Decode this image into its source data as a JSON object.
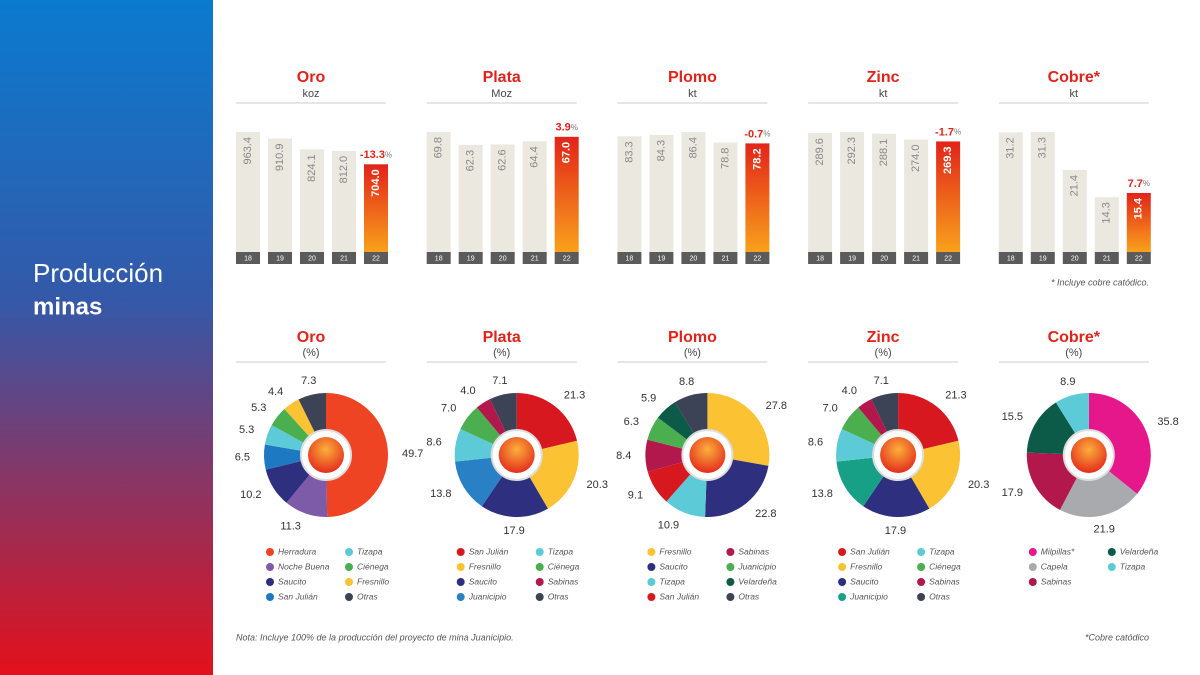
{
  "header": {
    "title": "Producción",
    "subtitle": "minas"
  },
  "notes": {
    "bars": "* Incluye cobre catódico.",
    "left": "Nota: Incluye 100% de la producción del proyecto de mina Juanicipio.",
    "right": "*Cobre catódico"
  },
  "chart_data": [
    {
      "type": "bar",
      "title": "Oro",
      "subtitle": "koz",
      "categories": [
        "18",
        "19",
        "20",
        "21",
        "22"
      ],
      "values": [
        963.4,
        910.9,
        824.1,
        812.0,
        704.0
      ],
      "value_labels": [
        "963.4",
        "910.9",
        "824.1",
        "812.0",
        "704.0"
      ],
      "change_label": "-13.3%",
      "color": "#ebe8df",
      "highlight_colors": [
        "#e2231a",
        "#f9a11b"
      ]
    },
    {
      "type": "bar",
      "title": "Plata",
      "subtitle": "Moz",
      "categories": [
        "18",
        "19",
        "20",
        "21",
        "22"
      ],
      "values": [
        69.8,
        62.3,
        62.6,
        64.4,
        67.0
      ],
      "value_labels": [
        "69.8",
        "62.3",
        "62.6",
        "64.4",
        "67.0"
      ],
      "change_label": "3.9%",
      "color": "#ebe8df",
      "highlight_colors": [
        "#e2231a",
        "#f9a11b"
      ]
    },
    {
      "type": "bar",
      "title": "Plomo",
      "subtitle": "kt",
      "categories": [
        "18",
        "19",
        "20",
        "21",
        "22"
      ],
      "values": [
        83.3,
        84.3,
        86.4,
        78.8,
        78.2
      ],
      "value_labels": [
        "83.3",
        "84.3",
        "86.4",
        "78.8",
        "78.2"
      ],
      "change_label": "-0.7%",
      "color": "#ebe8df",
      "highlight_colors": [
        "#e2231a",
        "#f9a11b"
      ]
    },
    {
      "type": "bar",
      "title": "Zinc",
      "subtitle": "kt",
      "categories": [
        "18",
        "19",
        "20",
        "21",
        "22"
      ],
      "values": [
        289.6,
        292.3,
        288.1,
        274.0,
        269.3
      ],
      "value_labels": [
        "289.6",
        "292.3",
        "288.1",
        "274.0",
        "269.3"
      ],
      "change_label": "-1.7%",
      "color": "#ebe8df",
      "highlight_colors": [
        "#e2231a",
        "#f9a11b"
      ]
    },
    {
      "type": "bar",
      "title": "Cobre*",
      "subtitle": "kt",
      "categories": [
        "18",
        "19",
        "20",
        "21",
        "22"
      ],
      "values": [
        31.2,
        31.3,
        21.4,
        14.3,
        15.4
      ],
      "value_labels": [
        "31.2",
        "31.3",
        "21.4",
        "14.3",
        "15.4"
      ],
      "change_label": "7.7%",
      "color": "#ebe8df",
      "highlight_colors": [
        "#e2231a",
        "#f9a11b"
      ]
    },
    {
      "type": "pie",
      "title": "Oro",
      "subtitle": "(%)",
      "categories": [
        "Herradura",
        "Noche Buena",
        "Saucito",
        "San Julián",
        "Tizapa",
        "Ciénega",
        "Fresnillo",
        "Otras"
      ],
      "values": [
        49.7,
        11.3,
        10.2,
        6.5,
        5.3,
        5.3,
        4.4,
        7.3
      ],
      "value_labels": [
        "49.7",
        "11.3",
        "10.2",
        "6.5",
        "5.3",
        "5.3",
        "4.4",
        "7.3"
      ],
      "colors": [
        "#ee4423",
        "#7e5ba8",
        "#2e2f7f",
        "#1d7ac2",
        "#5ccbd7",
        "#4caf4f",
        "#fbc233",
        "#3c4356"
      ]
    },
    {
      "type": "pie",
      "title": "Plata",
      "subtitle": "(%)",
      "categories": [
        "San Julián",
        "Fresnillo",
        "Saucito",
        "Juanicipio",
        "Tizapa",
        "Ciénega",
        "Sabinas",
        "Otras"
      ],
      "values": [
        21.3,
        20.3,
        17.9,
        13.8,
        8.6,
        7.0,
        4.0,
        7.1
      ],
      "value_labels": [
        "21.3",
        "20.3",
        "17.9",
        "13.8",
        "8.6",
        "7.0",
        "4.0",
        "7.1"
      ],
      "colors": [
        "#d7191f",
        "#fbc233",
        "#2e2f7f",
        "#2a80c5",
        "#5ccbd7",
        "#4caf4f",
        "#b2184b",
        "#3c4356"
      ]
    },
    {
      "type": "pie",
      "title": "Plomo",
      "subtitle": "(%)",
      "categories": [
        "Fresnillo",
        "Saucito",
        "Tizapa",
        "San Julián",
        "Sabinas",
        "Juanicipio",
        "Velardeña",
        "Otras"
      ],
      "values": [
        27.8,
        22.8,
        10.9,
        9.1,
        8.4,
        6.3,
        5.9,
        8.8
      ],
      "value_labels": [
        "27.8",
        "22.8",
        "10.9",
        "9.1",
        "8.4",
        "6.3",
        "5.9",
        "8.8"
      ],
      "colors": [
        "#fbc233",
        "#2e2f7f",
        "#5ccbd7",
        "#d7191f",
        "#b2184b",
        "#4caf4f",
        "#0b5b48",
        "#3c4356"
      ]
    },
    {
      "type": "pie",
      "title": "Zinc",
      "subtitle": "(%)",
      "categories": [
        "San Julián",
        "Fresnillo",
        "Saucito",
        "Juanicipio",
        "Tizapa",
        "Ciénega",
        "Sabinas",
        "Otras"
      ],
      "values": [
        21.3,
        20.3,
        17.9,
        13.8,
        8.6,
        7.0,
        4.0,
        7.1
      ],
      "value_labels": [
        "21.3",
        "20.3",
        "17.9",
        "13.8",
        "8.6",
        "7.0",
        "4.0",
        "7.1"
      ],
      "colors": [
        "#d7191f",
        "#fbc233",
        "#2e2f7f",
        "#17a085",
        "#5ccbd7",
        "#4caf4f",
        "#b2184b",
        "#3c4356"
      ]
    },
    {
      "type": "pie",
      "title": "Cobre*",
      "subtitle": "(%)",
      "categories": [
        "Milpillas*",
        "Capela",
        "Sabinas",
        "Velardeña",
        "Tizapa"
      ],
      "values": [
        35.8,
        21.9,
        17.9,
        15.5,
        8.9
      ],
      "value_labels": [
        "35.8",
        "21.9",
        "17.9",
        "15.5",
        "8.9"
      ],
      "colors": [
        "#e5178b",
        "#a8aaad",
        "#b2184b",
        "#0b5b48",
        "#5ccbd7"
      ]
    }
  ]
}
